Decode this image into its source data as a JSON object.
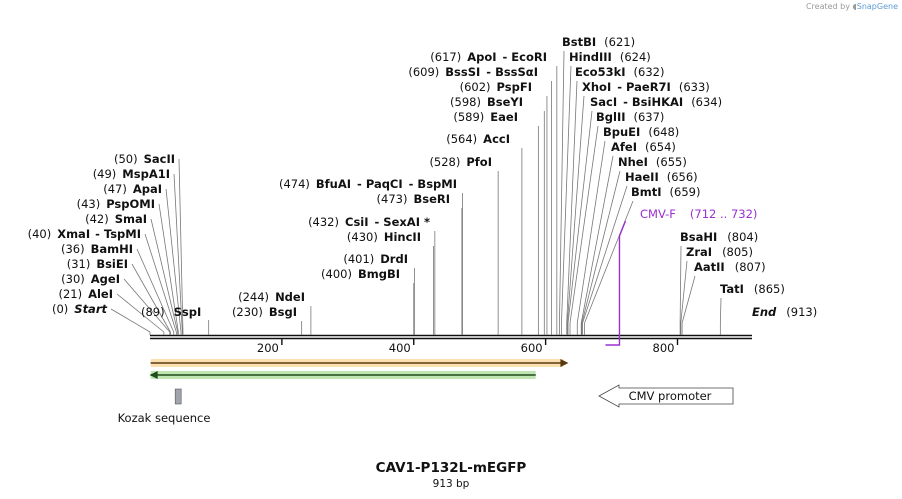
{
  "credit": {
    "prefix": "Created by",
    "brand": "SnapGene"
  },
  "title": "CAV1-P132L-mEGFP",
  "length_label": "913 bp",
  "length": 913,
  "ruler_ticks": [
    "200",
    "400",
    "600",
    "800"
  ],
  "enzymes_left": [
    {
      "pos": "(0)",
      "name": "Start",
      "bp": 0
    },
    {
      "pos": "(21)",
      "name": "AleI",
      "bp": 21
    },
    {
      "pos": "(30)",
      "name": "AgeI",
      "bp": 30
    },
    {
      "pos": "(31)",
      "name": "BsiEI",
      "bp": 31
    },
    {
      "pos": "(36)",
      "name": "BamHI",
      "bp": 36
    },
    {
      "pos": "(40)",
      "name": "XmaI",
      "extra": "TspMI",
      "bp": 40
    },
    {
      "pos": "(42)",
      "name": "SmaI",
      "bp": 42
    },
    {
      "pos": "(43)",
      "name": "PspOMI",
      "bp": 43
    },
    {
      "pos": "(47)",
      "name": "ApaI",
      "bp": 47
    },
    {
      "pos": "(49)",
      "name": "MspA1I",
      "bp": 49
    },
    {
      "pos": "(50)",
      "name": "SacII",
      "bp": 50
    }
  ],
  "enzyme_sspi": {
    "pos": "(89)",
    "name": "SspI",
    "bp": 89
  },
  "enzymes_mid": [
    {
      "pos": "(230)",
      "name": "BsgI",
      "bp": 230
    },
    {
      "pos": "(244)",
      "name": "NdeI",
      "bp": 244
    },
    {
      "pos": "(400)",
      "name": "BmgBI",
      "bp": 400
    },
    {
      "pos": "(401)",
      "name": "DrdI",
      "bp": 401
    },
    {
      "pos": "(430)",
      "name": "HincII",
      "bp": 430
    },
    {
      "pos": "(432)",
      "name": "CsiI",
      "extra": "SexAI *",
      "bp": 432
    },
    {
      "pos": "(473)",
      "name": "BseRI",
      "bp": 473
    },
    {
      "pos": "(474)",
      "name": "BfuAI",
      "extra": "PaqCI",
      "extra2": "BspMI",
      "bp": 474
    },
    {
      "pos": "(528)",
      "name": "PfoI",
      "bp": 528
    },
    {
      "pos": "(564)",
      "name": "AccI",
      "bp": 564
    },
    {
      "pos": "(589)",
      "name": "EaeI",
      "bp": 589
    },
    {
      "pos": "(598)",
      "name": "BseYI",
      "bp": 598
    },
    {
      "pos": "(602)",
      "name": "PspFI",
      "bp": 602
    },
    {
      "pos": "(609)",
      "name": "BssSI",
      "extra": "BssSαI",
      "bp": 609
    },
    {
      "pos": "(617)",
      "name": "ApoI",
      "extra": "EcoRI",
      "bp": 617
    }
  ],
  "enzymes_right": [
    {
      "name": "BstBI",
      "pos": "(621)",
      "bp": 621
    },
    {
      "name": "HindIII",
      "pos": "(624)",
      "bp": 624
    },
    {
      "name": "Eco53kI",
      "pos": "(632)",
      "bp": 632
    },
    {
      "name": "XhoI",
      "extra": "PaeR7I",
      "pos": "(633)",
      "bp": 633
    },
    {
      "name": "SacI",
      "extra": "BsiHKAI",
      "pos": "(634)",
      "bp": 634
    },
    {
      "name": "BglII",
      "pos": "(637)",
      "bp": 637
    },
    {
      "name": "BpuEI",
      "pos": "(648)",
      "bp": 648
    },
    {
      "name": "AfeI",
      "pos": "(654)",
      "bp": 654
    },
    {
      "name": "NheI",
      "pos": "(655)",
      "bp": 655
    },
    {
      "name": "HaeII",
      "pos": "(656)",
      "bp": 656
    },
    {
      "name": "BmtI",
      "pos": "(659)",
      "bp": 659
    }
  ],
  "enzymes_far": [
    {
      "name": "BsaHI",
      "pos": "(804)",
      "bp": 804
    },
    {
      "name": "ZraI",
      "pos": "(805)",
      "bp": 805
    },
    {
      "name": "AatII",
      "pos": "(807)",
      "bp": 807
    },
    {
      "name": "TatI",
      "pos": "(865)",
      "bp": 865
    },
    {
      "name": "End",
      "pos": "(913)",
      "bp": 913
    }
  ],
  "primer": {
    "name": "CMV-F",
    "range": "(712 .. 732)",
    "start": 712,
    "end": 732,
    "color": "#9b30d0"
  },
  "features": [
    {
      "name": "orf-forward",
      "start": 1,
      "end": 630,
      "direction": "forward",
      "color": "#f5a623"
    },
    {
      "name": "orf-reverse",
      "start": 1,
      "end": 585,
      "direction": "reverse",
      "color": "#4caf50"
    },
    {
      "name": "Kozak sequence",
      "start": 20,
      "end": 30,
      "color": "#a0a4ac"
    },
    {
      "name": "CMV promoter",
      "direction": "reverse"
    }
  ],
  "colors": {
    "backbone": "#111111",
    "line": "#777777"
  }
}
